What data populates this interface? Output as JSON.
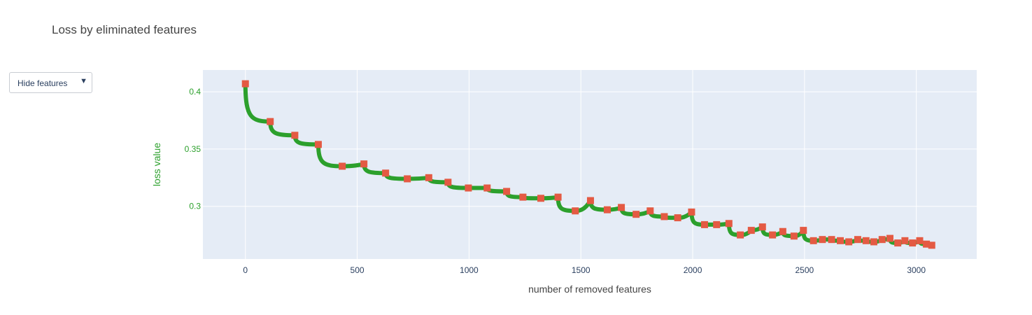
{
  "title": "Loss by eliminated features",
  "dropdown": {
    "label": "Hide features",
    "arrow_icon": "triangle-down-icon"
  },
  "chart_data": {
    "type": "line",
    "title": "Loss by eliminated features",
    "xlabel": "number of removed features",
    "ylabel": "loss value",
    "xlim": [
      -190,
      3270
    ],
    "ylim": [
      0.254,
      0.419
    ],
    "x_ticks": [
      0,
      500,
      1000,
      1500,
      2000,
      2500,
      3000
    ],
    "x_tick_labels": [
      "0",
      "500",
      "1000",
      "1500",
      "2000",
      "2500",
      "3000"
    ],
    "y_ticks": [
      0.3,
      0.35,
      0.4
    ],
    "y_tick_labels": [
      "0.3",
      "0.35",
      "0.4"
    ],
    "grid": true,
    "colors": {
      "line": "#2ca02c",
      "marker": "#e45a43",
      "plot_bg": "#e5ecf6",
      "ylabel": "#2ca02c"
    },
    "series": [
      {
        "x": [
          0,
          111,
          221,
          326,
          433,
          530,
          627,
          724,
          820,
          906,
          997,
          1081,
          1168,
          1241,
          1321,
          1398,
          1475,
          1543,
          1618,
          1681,
          1747,
          1810,
          1873,
          1933,
          1995,
          2053,
          2107,
          2162,
          2213,
          2262,
          2312,
          2357,
          2403,
          2453,
          2495,
          2540,
          2580,
          2621,
          2660,
          2698,
          2738,
          2775,
          2810,
          2847,
          2882,
          2917,
          2949,
          2983,
          3015,
          3045,
          3069
        ],
        "y": [
          0.407,
          0.374,
          0.362,
          0.354,
          0.335,
          0.337,
          0.329,
          0.324,
          0.325,
          0.321,
          0.316,
          0.316,
          0.313,
          0.308,
          0.307,
          0.308,
          0.296,
          0.305,
          0.297,
          0.299,
          0.293,
          0.296,
          0.291,
          0.29,
          0.295,
          0.284,
          0.284,
          0.285,
          0.275,
          0.279,
          0.282,
          0.275,
          0.278,
          0.274,
          0.279,
          0.27,
          0.271,
          0.271,
          0.27,
          0.269,
          0.271,
          0.27,
          0.269,
          0.271,
          0.272,
          0.268,
          0.27,
          0.268,
          0.27,
          0.267,
          0.266
        ]
      }
    ]
  }
}
